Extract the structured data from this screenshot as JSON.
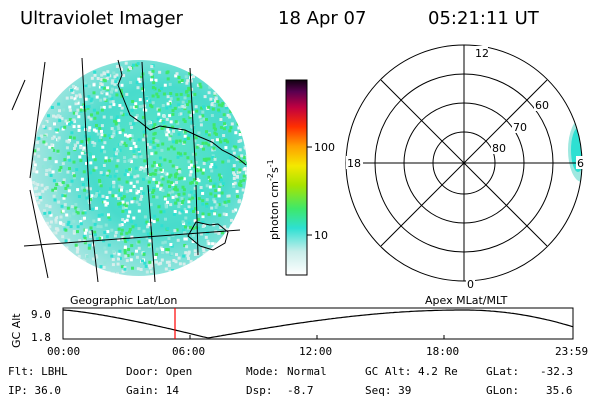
{
  "header": {
    "instrument": "Ultraviolet Imager",
    "date": "18 Apr 07",
    "time": "05:21:11 UT"
  },
  "colorbar": {
    "unit_label": "photon cm",
    "unit_exp1": "-2",
    "unit_mid": "s",
    "unit_exp2": "-1",
    "ticks": [
      "100",
      "10"
    ]
  },
  "polar": {
    "mlt_labels": {
      "top": "12",
      "left": "18",
      "right": "6",
      "bottom": "0"
    },
    "mlat_labels": [
      "60",
      "70",
      "80"
    ]
  },
  "panel_titles": {
    "left": "Geographic Lat/Lon",
    "right": "Apex  MLat/MLT"
  },
  "altitude_plot": {
    "ylabel": "GC Alt",
    "yticks": [
      "9.0",
      "1.8"
    ],
    "xticks": [
      "00:00",
      "06:00",
      "12:00",
      "18:00",
      "23:59"
    ],
    "marker_color": "#ff0000"
  },
  "info": {
    "filter": "Flt: LBHL",
    "door": "Door: Open",
    "mode_key": "Mode:",
    "mode_val": "Normal",
    "gcalt": "GC Alt: 4.2 Re",
    "glat_key": "GLat:",
    "glat_val": "-32.3",
    "ip": "IP: 36.0",
    "gain": "Gain: 14",
    "dsp_key": "Dsp:",
    "dsp_val": "-8.7",
    "seq": "Seq: 39",
    "glon_key": "GLon:",
    "glon_val": "35.6"
  },
  "colors": {
    "disk_light": "#c8ece8",
    "disk_cyan": "#2ee0d2",
    "disk_green": "#3ee86a"
  }
}
